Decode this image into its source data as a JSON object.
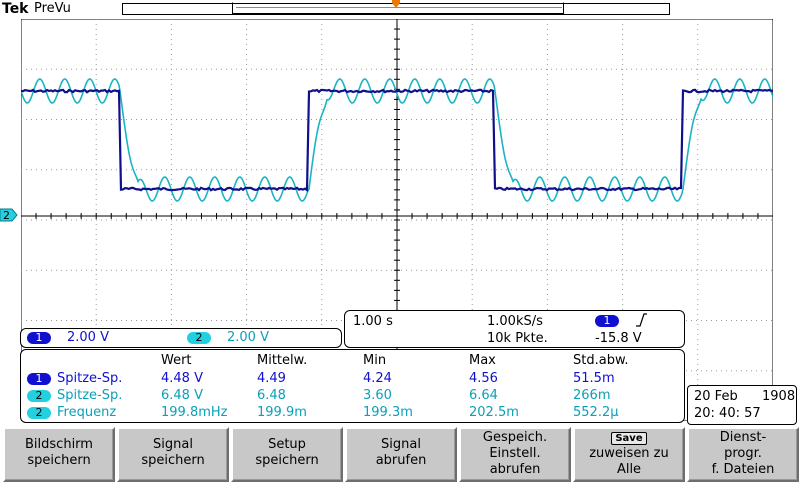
{
  "header": {
    "brand": "Tek",
    "acq_status": "PreVu"
  },
  "channels": {
    "ch1": {
      "label": "1",
      "volts_div": "2.00 V",
      "color": "#1010d0"
    },
    "ch2": {
      "label": "2",
      "volts_div": "2.00 V",
      "color": "#22d0e0"
    }
  },
  "timebase": {
    "time_div": "1.00 s",
    "sample_rate": "1.00kS/s",
    "record_length": "10k Pkte.",
    "trigger_source": "1",
    "trigger_slope_icon": "rising-edge-icon",
    "trigger_level": "-15.8 V"
  },
  "measurements": {
    "headers": [
      "Wert",
      "Mittelw.",
      "Min",
      "Max",
      "Std.abw."
    ],
    "rows": [
      {
        "channel": "1",
        "name": "Spitze-Sp.",
        "value": "4.48 V",
        "mean": "4.49",
        "min": "4.24",
        "max": "4.56",
        "std": "51.5m"
      },
      {
        "channel": "2",
        "name": "Spitze-Sp.",
        "value": "6.48 V",
        "mean": "6.48",
        "min": "3.60",
        "max": "6.64",
        "std": "266m"
      },
      {
        "channel": "2",
        "name": "Frequenz",
        "value": "199.8mHz",
        "mean": "199.9m",
        "min": "199.3m",
        "max": "202.5m",
        "std": "552.2μ"
      }
    ]
  },
  "datetime": {
    "date": "20 Feb",
    "year": "1908",
    "time": "20: 40: 57"
  },
  "ground_marker": "2",
  "softkeys": [
    {
      "line1": "Bildschirm",
      "line2": "speichern",
      "line3": ""
    },
    {
      "line1": "Signal",
      "line2": "speichern",
      "line3": ""
    },
    {
      "line1": "Setup",
      "line2": "speichern",
      "line3": ""
    },
    {
      "line1": "Signal",
      "line2": "abrufen",
      "line3": ""
    },
    {
      "line1": "Gespeich.",
      "line2": "Einstell.",
      "line3": "abrufen"
    },
    {
      "badge": "Save",
      "line1": "zuweisen zu",
      "line2": "Alle",
      "line3": ""
    },
    {
      "line1": "Dienst-",
      "line2": "progr.",
      "line3": "f. Dateien"
    }
  ]
}
